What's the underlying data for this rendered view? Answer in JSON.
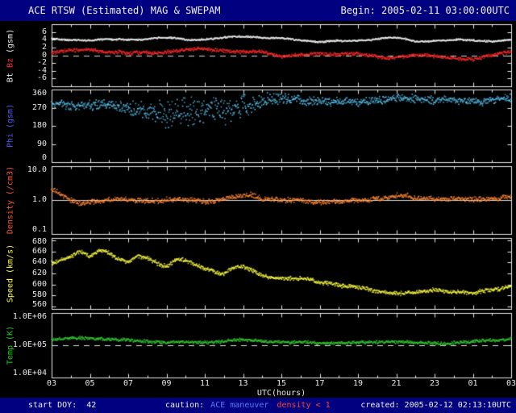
{
  "header": {
    "title": "ACE RTSW (Estimated) MAG & SWEPAM",
    "begin": "Begin: 2005-02-11 03:00:00UTC"
  },
  "footer": {
    "start_doy": "start DOY:  42",
    "caution_label": "caution:",
    "caution_maneuver": "ACE maneuver",
    "caution_density": "density < 1",
    "created": "created: 2005-02-12 02:13:10UTC"
  },
  "colors": {
    "background": "#000000",
    "bar_background": "#000080",
    "frame": "#e8e8e8",
    "bt": "#f0f0f0",
    "bz": "#ff2a2a",
    "phi_label": "#4d5ef5",
    "phi_points": "#5ac8f5",
    "density_label": "#ff5533",
    "density_points": "#ff8833",
    "speed": "#ffff44",
    "temp": "#33cc33",
    "maneuver_text": "#5c7cfa",
    "density_warn_text": "#ff4433"
  },
  "chart_data": {
    "type": "scatter",
    "title": "ACE RTSW (Estimated) MAG & SWEPAM",
    "begin": "Begin: 2005-02-11 03:00:00UTC",
    "x": {
      "label": "UTC(hours)",
      "min": 3,
      "max": 27,
      "ticks": [
        {
          "h": 3,
          "t": "03"
        },
        {
          "h": 5,
          "t": "05"
        },
        {
          "h": 7,
          "t": "07"
        },
        {
          "h": 9,
          "t": "09"
        },
        {
          "h": 11,
          "t": "11"
        },
        {
          "h": 13,
          "t": "13"
        },
        {
          "h": 15,
          "t": "15"
        },
        {
          "h": 17,
          "t": "17"
        },
        {
          "h": 19,
          "t": "19"
        },
        {
          "h": 21,
          "t": "21"
        },
        {
          "h": 23,
          "t": "23"
        },
        {
          "h": 25,
          "t": "01"
        },
        {
          "h": 27,
          "t": "03"
        }
      ]
    },
    "panels": [
      {
        "name": "mag",
        "ylabel": [
          {
            "text": "Bt ",
            "color": "#f0f0f0"
          },
          {
            "text": "Bz",
            "color": "#ff2a2a"
          },
          {
            "text": " (gsm)",
            "color": "#f0f0f0"
          }
        ],
        "scale": "linear",
        "ylim": [
          -8,
          8
        ],
        "yticks": [
          {
            "v": 6,
            "t": "6"
          },
          {
            "v": 4,
            "t": "4"
          },
          {
            "v": 2,
            "t": "2"
          },
          {
            "v": 0,
            "t": "0"
          },
          {
            "v": -2,
            "t": "-2"
          },
          {
            "v": -4,
            "t": "-4"
          },
          {
            "v": -6,
            "t": "-6"
          }
        ],
        "ref": [
          {
            "v": 0,
            "dash": true
          }
        ],
        "series": [
          {
            "name": "Bt",
            "color": "#f0f0f0",
            "seed": 11,
            "noise": 0.25,
            "wander": 0.35,
            "h": [
              3,
              4,
              5,
              6,
              7,
              8,
              9,
              10,
              11,
              12,
              13,
              14,
              15,
              16,
              17,
              18,
              19,
              20,
              21,
              22,
              23,
              24,
              25,
              26,
              27
            ],
            "v": [
              4.3,
              4.1,
              4.0,
              3.9,
              3.8,
              4.1,
              4.5,
              4.2,
              4.3,
              4.6,
              4.9,
              4.4,
              4.1,
              3.8,
              3.6,
              3.8,
              3.9,
              4.3,
              4.4,
              3.4,
              3.6,
              3.9,
              4.1,
              3.8,
              4.0
            ]
          },
          {
            "name": "Bz",
            "color": "#ff2a2a",
            "seed": 12,
            "noise": 0.55,
            "wander": 0.5,
            "h": [
              3,
              4,
              5,
              6,
              7,
              8,
              9,
              10,
              11,
              12,
              13,
              14,
              15,
              16,
              17,
              18,
              19,
              20,
              21,
              22,
              23,
              24,
              25,
              26,
              27
            ],
            "v": [
              0.9,
              1.1,
              1.3,
              0.6,
              0.3,
              0.8,
              1.1,
              1.5,
              1.8,
              1.0,
              0.4,
              0.9,
              -0.4,
              0.2,
              0.8,
              0.5,
              0.1,
              -0.6,
              -0.9,
              -0.2,
              0.1,
              -0.5,
              -1.1,
              0.2,
              0.8
            ]
          }
        ]
      },
      {
        "name": "phi",
        "ylabel": [
          {
            "text": "Phi (gsm)",
            "color": "#4d5ef5"
          }
        ],
        "scale": "linear",
        "ylim": [
          0,
          360
        ],
        "yticks": [
          {
            "v": 360,
            "t": "360"
          },
          {
            "v": 270,
            "t": "270"
          },
          {
            "v": 180,
            "t": "180"
          },
          {
            "v": 90,
            "t": "90"
          },
          {
            "v": 0,
            "t": "0"
          }
        ],
        "ref": [],
        "series": [
          {
            "name": "Phi",
            "color": "#5ac8f5",
            "seed": 13,
            "wander": 12,
            "reflect": [
              1,
              359
            ],
            "h": [
              3,
              5,
              7,
              9,
              10,
              11,
              12,
              13,
              14,
              15,
              16,
              18,
              20,
              22,
              24,
              26,
              27
            ],
            "v": [
              295,
              285,
              265,
              235,
              250,
              260,
              245,
              275,
              295,
              305,
              312,
              303,
              306,
              310,
              306,
              314,
              318
            ],
            "noise_h": [
              3,
              6,
              8,
              9,
              11,
              13,
              14,
              15,
              17,
              27
            ],
            "noise_v": [
              22,
              35,
              55,
              85,
              90,
              70,
              45,
              30,
              24,
              22
            ]
          }
        ]
      },
      {
        "name": "density",
        "ylabel": [
          {
            "text": "Density (/cm3)",
            "color": "#ff5533"
          }
        ],
        "scale": "log",
        "ylim": [
          0.1,
          10
        ],
        "yticks": [
          {
            "v": 10,
            "t": "10.0"
          },
          {
            "v": 1,
            "t": "1.0"
          },
          {
            "v": 0.1,
            "t": "0.1"
          }
        ],
        "ref": [
          {
            "v": 1,
            "dash": false
          }
        ],
        "series": [
          {
            "name": "Density",
            "color": "#ff8833",
            "seed": 14,
            "lognoise": 0.09,
            "logwander": 0.05,
            "h": [
              3,
              3.3,
              3.8,
              4.5,
              5,
              6,
              7,
              8,
              9,
              10,
              11,
              12,
              13,
              13.5,
              14,
              15,
              16,
              17,
              18,
              19,
              20,
              21,
              21.5,
              22,
              23,
              24,
              25,
              26,
              27
            ],
            "v": [
              2.2,
              1.8,
              1.1,
              0.85,
              0.9,
              1.0,
              0.95,
              0.9,
              1.0,
              1.05,
              1.0,
              1.1,
              1.3,
              1.35,
              1.05,
              0.95,
              0.9,
              0.92,
              0.95,
              1.0,
              1.1,
              1.3,
              1.25,
              1.0,
              1.05,
              1.1,
              1.05,
              1.2,
              1.3
            ]
          }
        ]
      },
      {
        "name": "speed",
        "ylabel": [
          {
            "text": "Speed (km/s)",
            "color": "#ffff44"
          }
        ],
        "scale": "linear",
        "ylim": [
          555,
          685
        ],
        "yticks": [
          {
            "v": 680,
            "t": "680"
          },
          {
            "v": 660,
            "t": "660"
          },
          {
            "v": 640,
            "t": "640"
          },
          {
            "v": 620,
            "t": "620"
          },
          {
            "v": 600,
            "t": "600"
          },
          {
            "v": 580,
            "t": "580"
          },
          {
            "v": 560,
            "t": "560"
          }
        ],
        "ref": [],
        "series": [
          {
            "name": "Speed",
            "color": "#ffff44",
            "seed": 15,
            "noise": 4.5,
            "wander": 4,
            "h": [
              3,
              4,
              4.5,
              5,
              5.5,
              6,
              6.5,
              7,
              7.5,
              8,
              8.5,
              9,
              9.5,
              10,
              11,
              12,
              12.5,
              13,
              14,
              15,
              16,
              17,
              18,
              19,
              20,
              21,
              22,
              23,
              24,
              25,
              26,
              27
            ],
            "v": [
              638,
              650,
              660,
              654,
              666,
              660,
              648,
              640,
              652,
              648,
              638,
              632,
              644,
              640,
              628,
              622,
              632,
              634,
              618,
              612,
              608,
              602,
              598,
              594,
              590,
              587,
              584,
              589,
              584,
              582,
              590,
              599
            ]
          }
        ]
      },
      {
        "name": "temp",
        "ylabel": [
          {
            "text": "Temp (K)",
            "color": "#22cc22"
          }
        ],
        "scale": "log",
        "ylim": [
          10000,
          1000000
        ],
        "yticks": [
          {
            "v": 1000000,
            "t": "1.0E+06"
          },
          {
            "v": 100000,
            "t": "1.0E+05"
          },
          {
            "v": 10000,
            "t": "1.0E+04"
          }
        ],
        "ref": [
          {
            "v": 100000,
            "dash": true
          }
        ],
        "series": [
          {
            "name": "Temp",
            "color": "#33cc33",
            "seed": 16,
            "lognoise": 0.06,
            "logwander": 0.035,
            "h": [
              3,
              4,
              5,
              6,
              7,
              8,
              9,
              10,
              11,
              12,
              13,
              14,
              15,
              16,
              17,
              18,
              19,
              20,
              21,
              22,
              23,
              24,
              25,
              26,
              27
            ],
            "v": [
              150000,
              155000,
              160000,
              150000,
              140000,
              135000,
              130000,
              125000,
              120000,
              130000,
              140000,
              135000,
              130000,
              125000,
              120000,
              118000,
              115000,
              120000,
              125000,
              120000,
              118000,
              125000,
              130000,
              140000,
              150000
            ]
          }
        ]
      }
    ]
  }
}
